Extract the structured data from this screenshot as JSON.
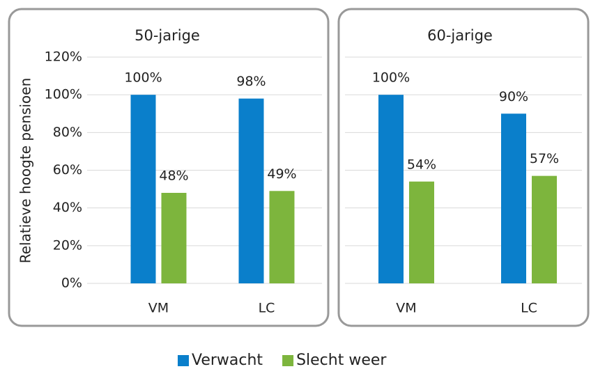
{
  "chart_data": [
    {
      "type": "bar",
      "title": "50-jarige",
      "ylabel": "Relatieve hoogte pensioen",
      "categories": [
        "VM",
        "LC"
      ],
      "series": [
        {
          "name": "Verwacht",
          "color": "#0a7fcb",
          "values": [
            100,
            98
          ],
          "value_labels": [
            "100%",
            "98%"
          ]
        },
        {
          "name": "Slecht weer",
          "color": "#7db53d",
          "values": [
            48,
            49
          ],
          "value_labels": [
            "48%",
            "49%"
          ]
        }
      ],
      "ylim": [
        0,
        120
      ],
      "yticks": [
        {
          "value": 0,
          "label": "0%"
        },
        {
          "value": 20,
          "label": "20%"
        },
        {
          "value": 40,
          "label": "40%"
        },
        {
          "value": 60,
          "label": "60%"
        },
        {
          "value": 80,
          "label": "80%"
        },
        {
          "value": 100,
          "label": "100%"
        },
        {
          "value": 120,
          "label": "120%"
        }
      ],
      "grid": true
    },
    {
      "type": "bar",
      "title": "60-jarige",
      "categories": [
        "VM",
        "LC"
      ],
      "series": [
        {
          "color": "#0a7fcb",
          "values": [
            100,
            90
          ],
          "value_labels": [
            "100%",
            "90%"
          ]
        },
        {
          "color": "#7db53d",
          "values": [
            54,
            57
          ],
          "value_labels": [
            "54%",
            "57%"
          ]
        }
      ],
      "ylim": [
        0,
        120
      ],
      "yticks": [
        0,
        20,
        40,
        60,
        80,
        100,
        120
      ],
      "grid": true
    }
  ]
}
